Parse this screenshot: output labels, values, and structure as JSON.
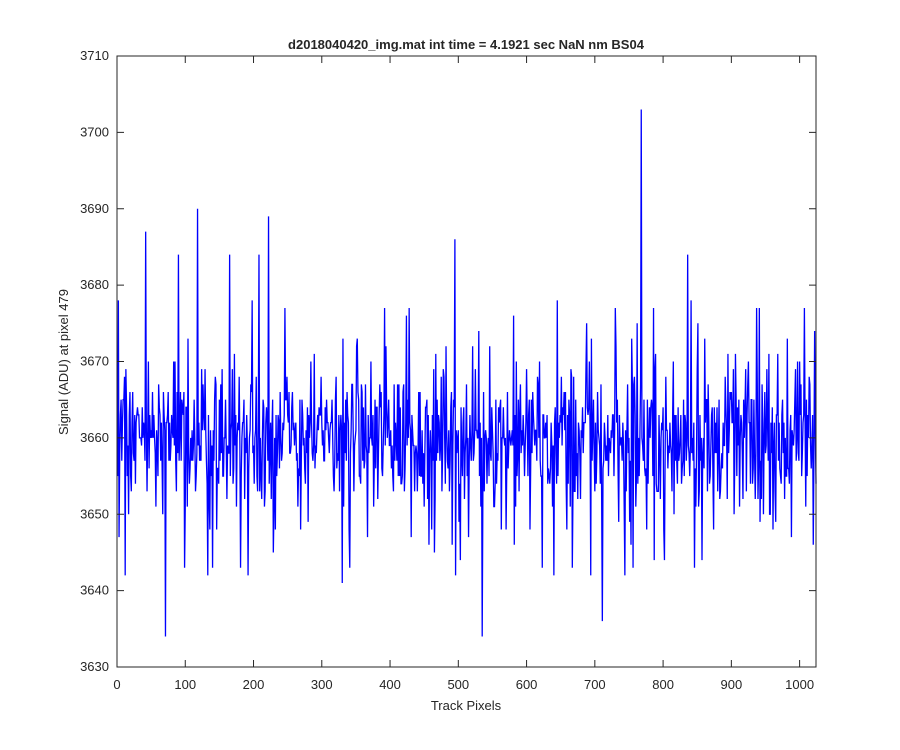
{
  "chart_data": {
    "type": "line",
    "title": "d2018040420_img.mat int time = 4.1921 sec  NaN nm BS04",
    "xlabel": "Track Pixels",
    "ylabel": "Signal (ADU) at pixel 479",
    "xlim": [
      0,
      1024
    ],
    "ylim": [
      3630,
      3710
    ],
    "xticks": [
      0,
      100,
      200,
      300,
      400,
      500,
      600,
      700,
      800,
      900,
      1000
    ],
    "yticks": [
      3630,
      3640,
      3650,
      3660,
      3670,
      3680,
      3690,
      3700,
      3710
    ],
    "xtick_labels": [
      "0",
      "100",
      "200",
      "300",
      "400",
      "500",
      "600",
      "700",
      "800",
      "900",
      "1000"
    ],
    "ytick_labels": [
      "3630",
      "3640",
      "3650",
      "3660",
      "3670",
      "3680",
      "3690",
      "3700",
      "3710"
    ],
    "grid": false,
    "line_color": "#0000ff",
    "series": [
      {
        "x_start": 1,
        "x_step": 1,
        "baseline": 3660,
        "noise_range": [
          3646,
          3674
        ],
        "notable_points": [
          {
            "x": 2,
            "y": 3678
          },
          {
            "x": 12,
            "y": 3642
          },
          {
            "x": 42,
            "y": 3687
          },
          {
            "x": 71,
            "y": 3634
          },
          {
            "x": 90,
            "y": 3684
          },
          {
            "x": 118,
            "y": 3690
          },
          {
            "x": 165,
            "y": 3684
          },
          {
            "x": 192,
            "y": 3642
          },
          {
            "x": 208,
            "y": 3684
          },
          {
            "x": 222,
            "y": 3689
          },
          {
            "x": 330,
            "y": 3641
          },
          {
            "x": 428,
            "y": 3677
          },
          {
            "x": 495,
            "y": 3686
          },
          {
            "x": 535,
            "y": 3634
          },
          {
            "x": 711,
            "y": 3636
          },
          {
            "x": 768,
            "y": 3703
          },
          {
            "x": 836,
            "y": 3684
          },
          {
            "x": 1020,
            "y": 3646
          }
        ]
      }
    ]
  }
}
